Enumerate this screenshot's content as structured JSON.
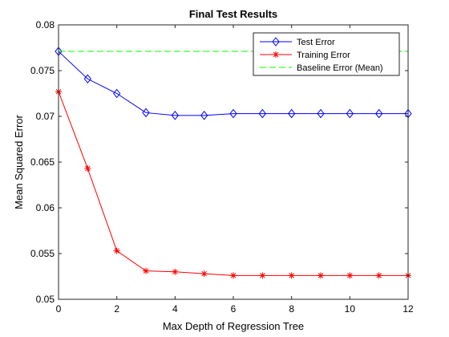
{
  "chart_data": {
    "type": "line",
    "title": "Final Test Results",
    "xlabel": "Max Depth of Regression Tree",
    "ylabel": "Mean Squared Error",
    "xlim": [
      0,
      12
    ],
    "ylim": [
      0.05,
      0.08
    ],
    "x_ticks": [
      "0",
      "2",
      "4",
      "6",
      "8",
      "10",
      "12"
    ],
    "y_ticks": [
      "0.05",
      "0.055",
      "0.06",
      "0.065",
      "0.07",
      "0.075",
      "0.08"
    ],
    "grid": false,
    "legend_position": "top-right",
    "x": [
      0,
      1,
      2,
      3,
      4,
      5,
      6,
      7,
      8,
      9,
      10,
      11,
      12
    ],
    "series": [
      {
        "name": "Test Error",
        "color": "#0000ff",
        "marker": "diamond",
        "line": "solid",
        "values": [
          0.0771,
          0.0741,
          0.0725,
          0.0704,
          0.0701,
          0.0701,
          0.0703,
          0.0703,
          0.0703,
          0.0703,
          0.0703,
          0.0703,
          0.0703
        ]
      },
      {
        "name": "Training Error",
        "color": "#ff0000",
        "marker": "asterisk",
        "line": "solid",
        "values": [
          0.0727,
          0.0643,
          0.0553,
          0.0531,
          0.053,
          0.0528,
          0.0526,
          0.0526,
          0.0526,
          0.0526,
          0.0526,
          0.0526,
          0.0526
        ]
      },
      {
        "name": "Baseline Error (Mean)",
        "color": "#00ff00",
        "marker": "none",
        "line": "dashed",
        "values": [
          0.0771,
          0.0771,
          0.0771,
          0.0771,
          0.0771,
          0.0771,
          0.0771,
          0.0771,
          0.0771,
          0.0771,
          0.0771,
          0.0771,
          0.0771
        ]
      }
    ]
  }
}
